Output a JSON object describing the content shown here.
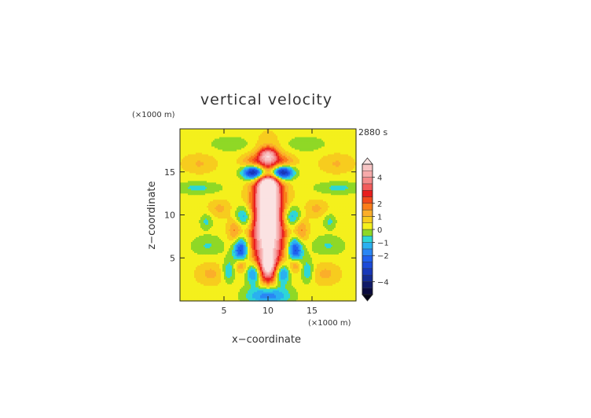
{
  "chart_data": {
    "type": "heatmap",
    "title": "vertical velocity",
    "time_label": "2880 s",
    "xlabel": "x−coordinate",
    "ylabel": "z−coordinate",
    "x_unit": "(×1000 m)",
    "y_unit": "(×1000 m)",
    "x_range": [
      0,
      20
    ],
    "y_range": [
      0,
      20
    ],
    "x_ticks": [
      5,
      10,
      15
    ],
    "y_ticks": [
      5,
      10,
      15
    ],
    "colorbar": {
      "tick_values": [
        4,
        2,
        1,
        0,
        -1,
        -2,
        -4
      ],
      "tick_labels": [
        "4",
        "2",
        "1",
        "0",
        "−1",
        "−2",
        "−4"
      ],
      "range": [
        -5,
        5
      ],
      "extend": "both",
      "levels": [
        {
          "from": -5.0,
          "to": -4.5,
          "color": "#0b0b3e"
        },
        {
          "from": -4.5,
          "to": -4.0,
          "color": "#101a68"
        },
        {
          "from": -4.0,
          "to": -3.5,
          "color": "#142b92"
        },
        {
          "from": -3.5,
          "to": -3.0,
          "color": "#1838b8"
        },
        {
          "from": -3.0,
          "to": -2.5,
          "color": "#1c4ad8"
        },
        {
          "from": -2.5,
          "to": -2.0,
          "color": "#2060ee"
        },
        {
          "from": -2.0,
          "to": -1.5,
          "color": "#2a86f4"
        },
        {
          "from": -1.5,
          "to": -1.0,
          "color": "#2ab0f0"
        },
        {
          "from": -1.0,
          "to": -0.5,
          "color": "#2ed6d6"
        },
        {
          "from": -0.5,
          "to": 0.0,
          "color": "#8fd826"
        },
        {
          "from": 0.0,
          "to": 0.5,
          "color": "#f4f01c"
        },
        {
          "from": 0.5,
          "to": 1.0,
          "color": "#f7cc1e"
        },
        {
          "from": 1.0,
          "to": 1.5,
          "color": "#fbae2a"
        },
        {
          "from": 1.5,
          "to": 2.0,
          "color": "#fa7d1a"
        },
        {
          "from": 2.0,
          "to": 2.5,
          "color": "#f24a1c"
        },
        {
          "from": 2.5,
          "to": 3.0,
          "color": "#e81e1e"
        },
        {
          "from": 3.0,
          "to": 3.5,
          "color": "#f25c5c"
        },
        {
          "from": 3.5,
          "to": 4.0,
          "color": "#f48a8a"
        },
        {
          "from": 4.0,
          "to": 4.5,
          "color": "#f6aaaa"
        },
        {
          "from": 4.5,
          "to": 5.0,
          "color": "#f8c4c4"
        }
      ],
      "over_color": "#fbe2e2",
      "under_color": "#050518"
    },
    "field_features": [
      {
        "kind": "updraft core",
        "x": 10,
        "z": 9.2,
        "sx": 1.25,
        "sz": 4.2,
        "amplitude": 6.5
      },
      {
        "kind": "updraft crown",
        "x": 10,
        "z": 13.6,
        "sx": 0.75,
        "sz": 1.3,
        "amplitude": 4.0
      },
      {
        "kind": "updraft base",
        "x": 10,
        "z": 4.2,
        "sx": 0.55,
        "sz": 1.1,
        "amplitude": 3.0
      },
      {
        "kind": "overshoot",
        "x": 10,
        "z": 17.0,
        "sx": 0.7,
        "sz": 0.6,
        "amplitude": 3.2
      },
      {
        "kind": "downdraft",
        "x": 8.5,
        "z": 15.0,
        "sx": 0.9,
        "sz": 0.6,
        "amplitude": -5.0
      },
      {
        "kind": "downdraft",
        "x": 11.5,
        "z": 15.0,
        "sx": 0.9,
        "sz": 0.6,
        "amplitude": -5.0
      },
      {
        "kind": "downdraft",
        "x": 10,
        "z": 14.7,
        "sx": 0.6,
        "sz": 0.5,
        "amplitude": -2.0
      },
      {
        "kind": "downdraft",
        "x": 7.3,
        "z": 9.8,
        "sx": 0.8,
        "sz": 0.9,
        "amplitude": -2.0
      },
      {
        "kind": "downdraft",
        "x": 12.7,
        "z": 9.8,
        "sx": 0.8,
        "sz": 0.9,
        "amplitude": -2.0
      },
      {
        "kind": "downdraft",
        "x": 6.9,
        "z": 6.0,
        "sx": 0.6,
        "sz": 1.1,
        "amplitude": -3.2
      },
      {
        "kind": "downdraft",
        "x": 13.1,
        "z": 6.0,
        "sx": 0.6,
        "sz": 1.1,
        "amplitude": -3.2
      },
      {
        "kind": "downdraft",
        "x": 8.4,
        "z": 3.2,
        "sx": 0.6,
        "sz": 0.9,
        "amplitude": -2.6
      },
      {
        "kind": "downdraft",
        "x": 11.6,
        "z": 3.2,
        "sx": 0.6,
        "sz": 0.9,
        "amplitude": -2.6
      },
      {
        "kind": "downdraft",
        "x": 10,
        "z": 0.7,
        "sx": 1.6,
        "sz": 0.8,
        "amplitude": -2.8
      },
      {
        "kind": "downdraft",
        "x": 5.5,
        "z": 3.5,
        "sx": 0.5,
        "sz": 0.9,
        "amplitude": -1.4
      },
      {
        "kind": "downdraft",
        "x": 14.5,
        "z": 3.5,
        "sx": 0.5,
        "sz": 0.9,
        "amplitude": -1.4
      },
      {
        "kind": "downdraft",
        "x": 3.0,
        "z": 9.3,
        "sx": 0.5,
        "sz": 0.6,
        "amplitude": -0.9
      },
      {
        "kind": "downdraft",
        "x": 17.0,
        "z": 9.3,
        "sx": 0.5,
        "sz": 0.6,
        "amplitude": -0.9
      },
      {
        "kind": "band",
        "x": 6.3,
        "z": 8.2,
        "sx": 0.6,
        "sz": 1.2,
        "amplitude": 1.6
      },
      {
        "kind": "band",
        "x": 13.7,
        "z": 8.2,
        "sx": 0.6,
        "sz": 1.2,
        "amplitude": 1.6
      },
      {
        "kind": "band",
        "x": 6.9,
        "z": 4.3,
        "sx": 0.5,
        "sz": 0.6,
        "amplitude": 1.7
      },
      {
        "kind": "band",
        "x": 13.1,
        "z": 4.3,
        "sx": 0.5,
        "sz": 0.6,
        "amplitude": 1.7
      },
      {
        "kind": "band",
        "x": 8.3,
        "z": 16.2,
        "sx": 1.0,
        "sz": 0.6,
        "amplitude": 1.5
      },
      {
        "kind": "band",
        "x": 11.7,
        "z": 16.2,
        "sx": 1.0,
        "sz": 0.6,
        "amplitude": 1.5
      },
      {
        "kind": "band",
        "x": 2.0,
        "z": 13.2,
        "sx": 1.8,
        "sz": 0.5,
        "amplitude": -0.9
      },
      {
        "kind": "band",
        "x": 18.0,
        "z": 13.2,
        "sx": 1.8,
        "sz": 0.5,
        "amplitude": -0.9
      },
      {
        "kind": "band",
        "x": 3.2,
        "z": 6.5,
        "sx": 1.3,
        "sz": 0.8,
        "amplitude": -0.8
      },
      {
        "kind": "band",
        "x": 16.8,
        "z": 6.5,
        "sx": 1.3,
        "sz": 0.8,
        "amplitude": -0.8
      },
      {
        "kind": "band",
        "x": 5.8,
        "z": 18.3,
        "sx": 1.6,
        "sz": 0.6,
        "amplitude": -0.7
      },
      {
        "kind": "band",
        "x": 14.2,
        "z": 18.3,
        "sx": 1.6,
        "sz": 0.6,
        "amplitude": -0.7
      },
      {
        "kind": "band",
        "x": 3.5,
        "z": 3.2,
        "sx": 1.2,
        "sz": 0.9,
        "amplitude": 0.9
      },
      {
        "kind": "band",
        "x": 16.5,
        "z": 3.2,
        "sx": 1.2,
        "sz": 0.9,
        "amplitude": 0.9
      },
      {
        "kind": "band",
        "x": 2.2,
        "z": 16.0,
        "sx": 1.4,
        "sz": 0.8,
        "amplitude": 0.8
      },
      {
        "kind": "band",
        "x": 17.8,
        "z": 16.0,
        "sx": 1.4,
        "sz": 0.8,
        "amplitude": 0.8
      },
      {
        "kind": "band",
        "x": 4.5,
        "z": 10.8,
        "sx": 0.9,
        "sz": 0.7,
        "amplitude": 0.9
      },
      {
        "kind": "band",
        "x": 15.5,
        "z": 10.8,
        "sx": 0.9,
        "sz": 0.7,
        "amplitude": 0.9
      }
    ],
    "background_value": 0.25
  }
}
